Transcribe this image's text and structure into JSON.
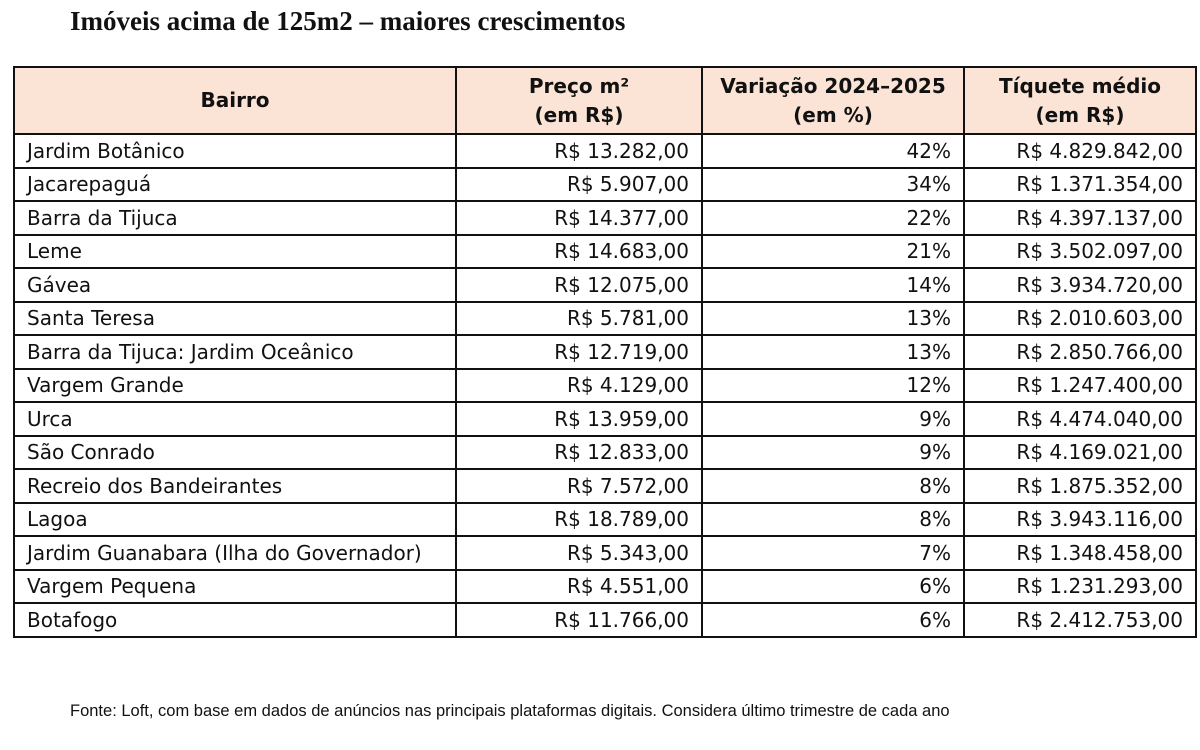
{
  "title": "Imóveis acima de 125m2 – maiores crescimentos",
  "table": {
    "headers": {
      "bairro": "Bairro",
      "preco_line1": "Preço m²",
      "preco_line2": "(em R$)",
      "variacao_line1": "Variação 2024–2025",
      "variacao_line2": "(em %)",
      "tiquete_line1": "Tíquete médio",
      "tiquete_line2": "(em R$)"
    },
    "header_bg": "#fbe4d6",
    "rows": [
      {
        "bairro": "Jardim Botânico",
        "preco": "R$ 13.282,00",
        "variacao": "42%",
        "tiquete": "R$ 4.829.842,00"
      },
      {
        "bairro": "Jacarepaguá",
        "preco": "R$ 5.907,00",
        "variacao": "34%",
        "tiquete": "R$ 1.371.354,00"
      },
      {
        "bairro": "Barra da Tijuca",
        "preco": "R$ 14.377,00",
        "variacao": "22%",
        "tiquete": "R$ 4.397.137,00"
      },
      {
        "bairro": "Leme",
        "preco": "R$ 14.683,00",
        "variacao": "21%",
        "tiquete": "R$ 3.502.097,00"
      },
      {
        "bairro": "Gávea",
        "preco": "R$ 12.075,00",
        "variacao": "14%",
        "tiquete": "R$ 3.934.720,00"
      },
      {
        "bairro": "Santa Teresa",
        "preco": "R$ 5.781,00",
        "variacao": "13%",
        "tiquete": "R$ 2.010.603,00"
      },
      {
        "bairro": "Barra da Tijuca: Jardim Oceânico",
        "preco": "R$ 12.719,00",
        "variacao": "13%",
        "tiquete": "R$ 2.850.766,00"
      },
      {
        "bairro": "Vargem Grande",
        "preco": "R$ 4.129,00",
        "variacao": "12%",
        "tiquete": "R$ 1.247.400,00"
      },
      {
        "bairro": "Urca",
        "preco": "R$ 13.959,00",
        "variacao": "9%",
        "tiquete": "R$ 4.474.040,00"
      },
      {
        "bairro": "São Conrado",
        "preco": "R$ 12.833,00",
        "variacao": "9%",
        "tiquete": "R$ 4.169.021,00"
      },
      {
        "bairro": "Recreio dos Bandeirantes",
        "preco": "R$ 7.572,00",
        "variacao": "8%",
        "tiquete": "R$ 1.875.352,00"
      },
      {
        "bairro": "Lagoa",
        "preco": "R$ 18.789,00",
        "variacao": "8%",
        "tiquete": "R$ 3.943.116,00"
      },
      {
        "bairro": "Jardim Guanabara (Ilha do Governador)",
        "preco": "R$ 5.343,00",
        "variacao": "7%",
        "tiquete": "R$ 1.348.458,00"
      },
      {
        "bairro": "Vargem Pequena",
        "preco": "R$ 4.551,00",
        "variacao": "6%",
        "tiquete": "R$ 1.231.293,00"
      },
      {
        "bairro": "Botafogo",
        "preco": "R$ 11.766,00",
        "variacao": "6%",
        "tiquete": "R$ 2.412.753,00"
      }
    ]
  },
  "footer": "Fonte: Loft, com base em dados de anúncios nas principais plataformas digitais. Considera último trimestre de cada ano"
}
